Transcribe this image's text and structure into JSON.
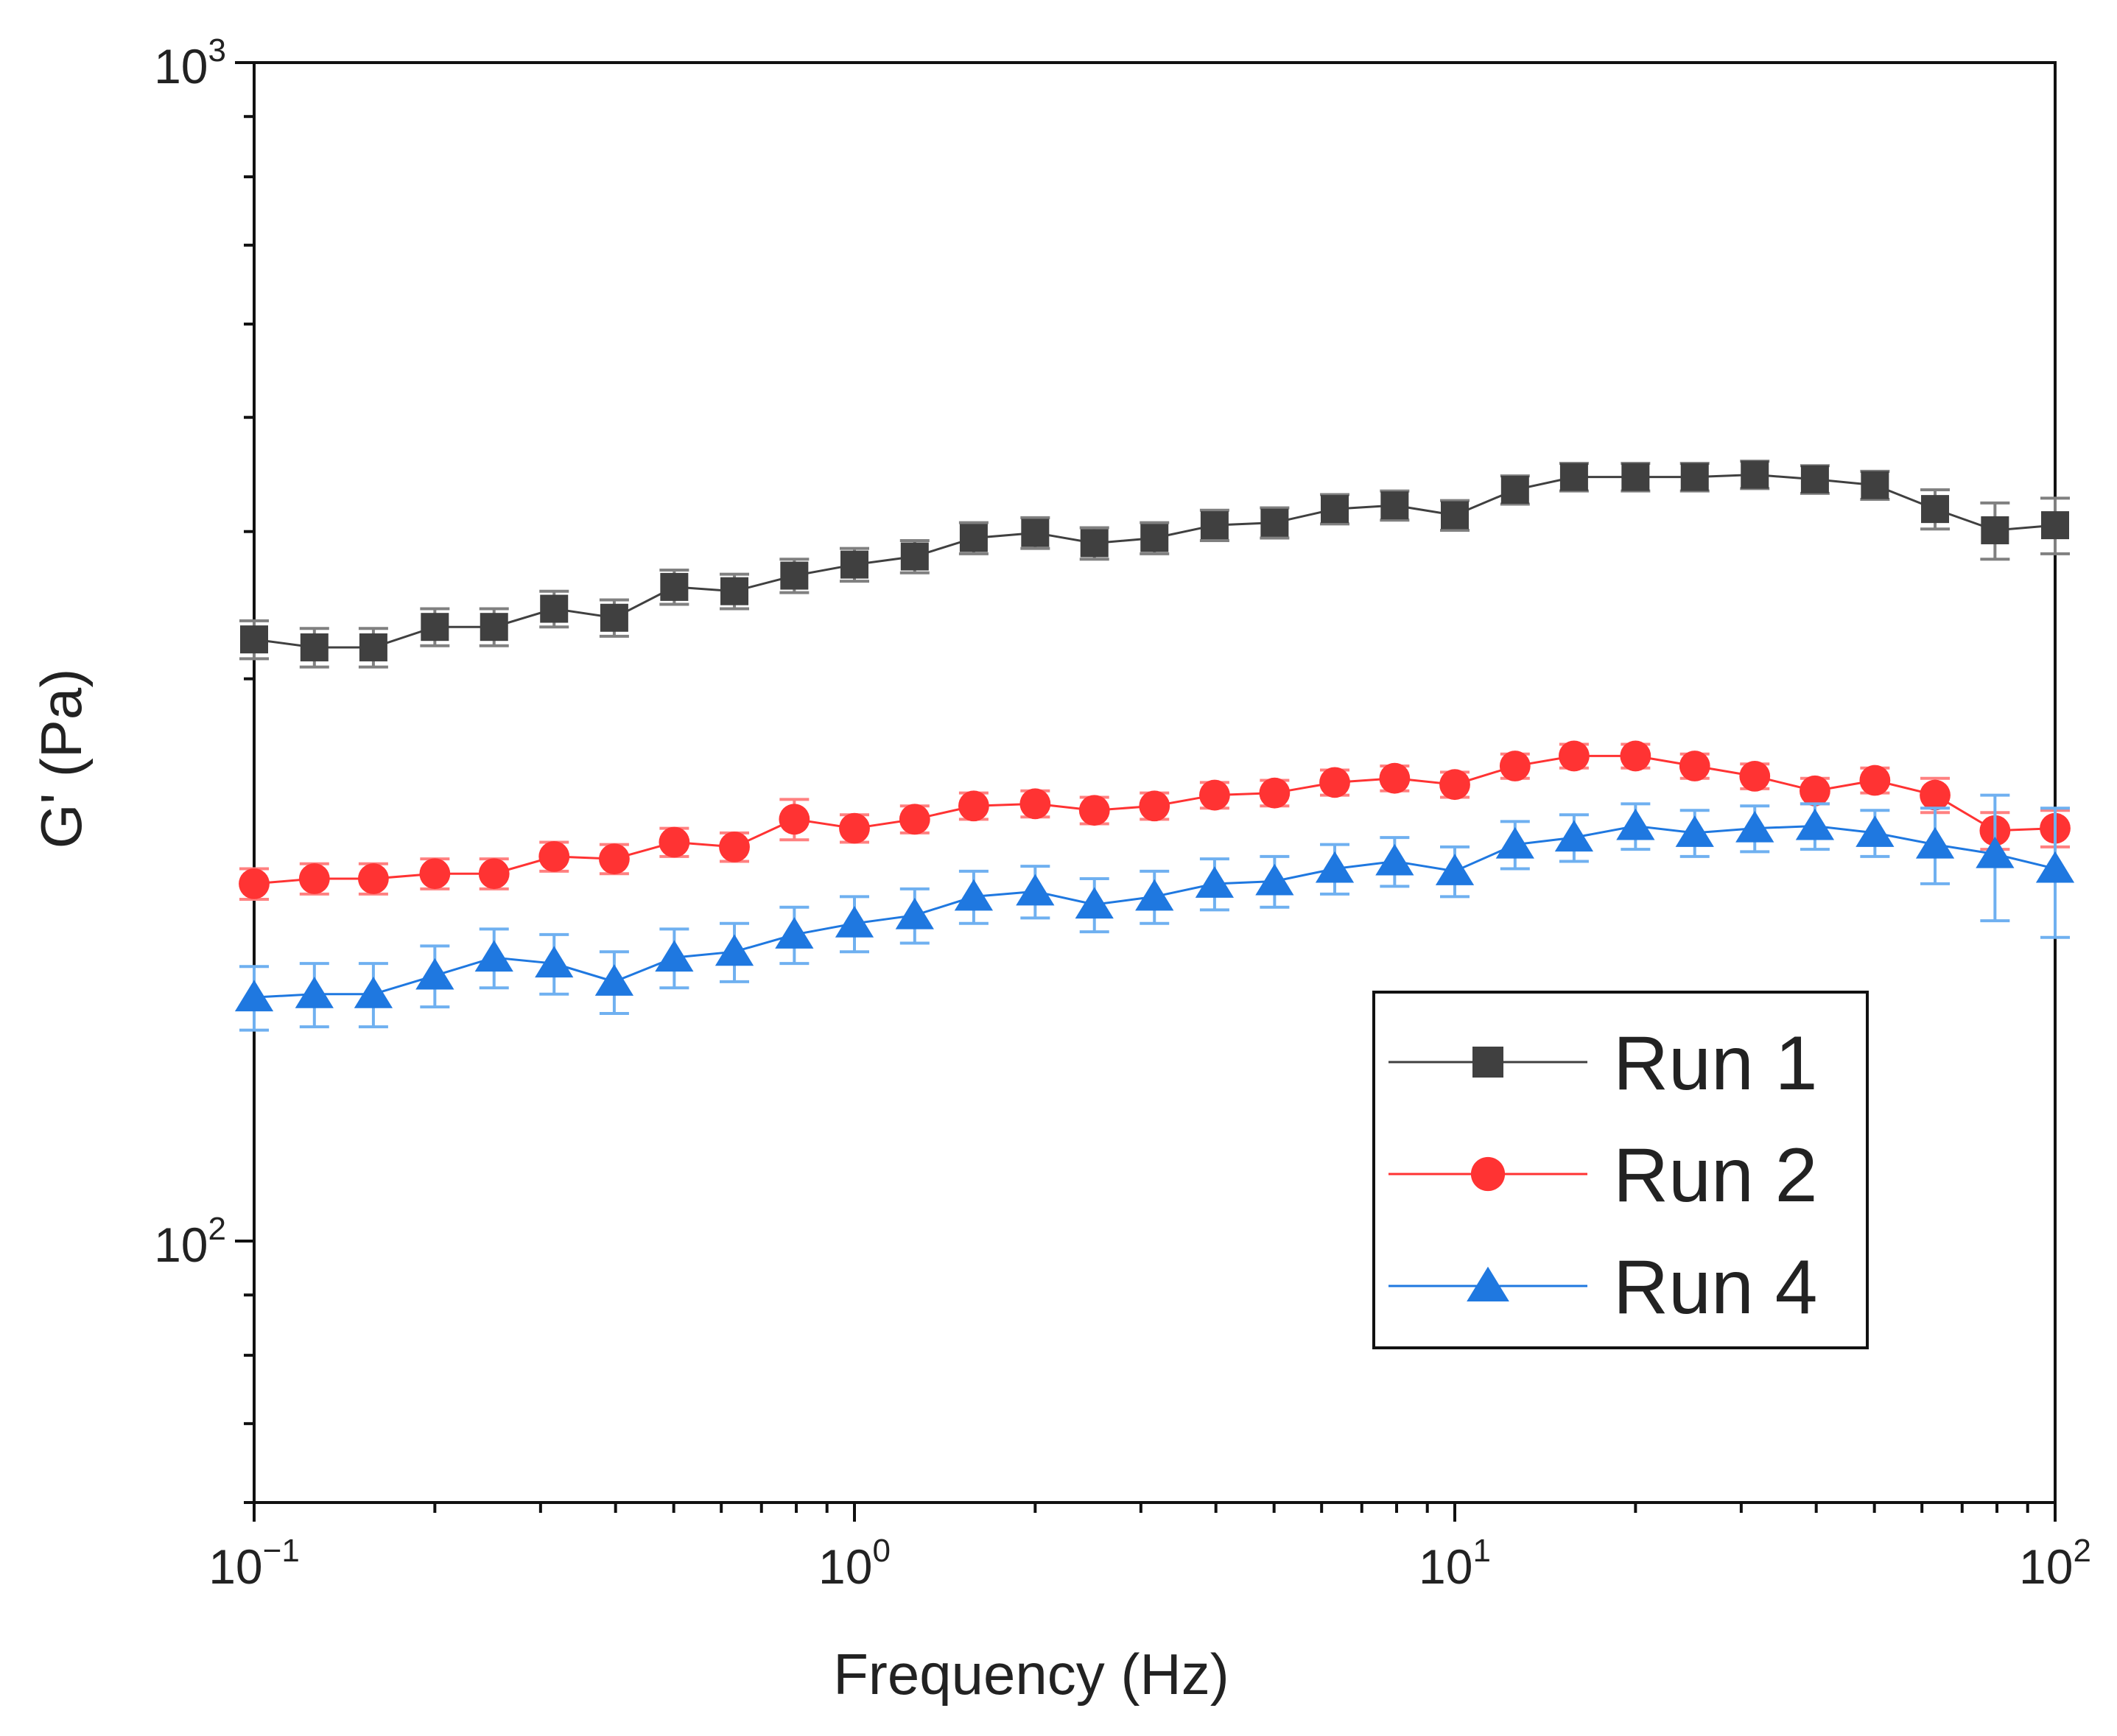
{
  "chart_data": {
    "type": "line",
    "xscale": "log",
    "yscale": "log",
    "xlabel": "Frequency (Hz)",
    "ylabel": "G' (Pa)",
    "xlim": [
      0.1,
      100
    ],
    "ylim": [
      60,
      1000
    ],
    "x_ticks": [
      {
        "base": "10",
        "exp": "−1",
        "value": 0.1
      },
      {
        "base": "10",
        "exp": "0",
        "value": 1
      },
      {
        "base": "10",
        "exp": "1",
        "value": 10
      },
      {
        "base": "10",
        "exp": "2",
        "value": 100
      }
    ],
    "y_ticks": [
      {
        "base": "10",
        "exp": "2",
        "value": 100
      },
      {
        "base": "10",
        "exp": "3",
        "value": 1000
      }
    ],
    "legend_position": "bottom-right",
    "x": [
      0.1,
      0.126,
      0.158,
      0.2,
      0.251,
      0.316,
      0.398,
      0.501,
      0.631,
      0.794,
      1.0,
      1.26,
      1.58,
      2.0,
      2.51,
      3.16,
      3.98,
      5.01,
      6.31,
      7.94,
      10.0,
      12.6,
      15.8,
      20.0,
      25.1,
      31.6,
      39.8,
      50.1,
      63.1,
      79.4,
      100
    ],
    "series": [
      {
        "name": "Run 1",
        "color": "#404040",
        "marker": "square",
        "values": [
          324,
          319,
          319,
          332,
          332,
          344,
          338,
          359,
          356,
          367,
          375,
          381,
          395,
          399,
          391,
          395,
          405,
          407,
          418,
          421,
          413,
          434,
          445,
          445,
          445,
          447,
          443,
          438,
          418,
          401,
          405
        ],
        "errors": [
          12,
          12,
          12,
          12,
          12,
          12,
          12,
          12,
          12,
          12,
          12,
          12,
          12,
          12,
          12,
          12,
          12,
          12,
          12,
          12,
          12,
          12,
          12,
          12,
          12,
          12,
          12,
          12,
          16,
          22,
          22
        ]
      },
      {
        "name": "Run 2",
        "color": "#ff3333",
        "marker": "circle",
        "values": [
          201,
          203,
          203,
          205,
          205,
          212,
          211,
          218,
          216,
          228,
          224,
          228,
          234,
          235,
          232,
          234,
          239,
          240,
          245,
          247,
          244,
          253,
          258,
          258,
          253,
          248,
          241,
          246,
          239,
          223,
          224
        ],
        "errors": [
          6,
          6,
          6,
          6,
          6,
          6,
          6,
          6,
          6,
          9,
          6,
          6,
          6,
          6,
          6,
          6,
          6,
          6,
          6,
          6,
          6,
          6,
          6,
          6,
          6,
          6,
          6,
          6,
          8,
          8,
          8
        ]
      },
      {
        "name": "Run 4",
        "color": "#1f78e0",
        "marker": "triangle",
        "values": [
          161,
          162,
          162,
          168,
          174,
          172,
          166,
          174,
          176,
          182,
          186,
          189,
          196,
          198,
          193,
          196,
          201,
          202,
          207,
          210,
          206,
          217,
          220,
          225,
          222,
          224,
          225,
          222,
          217,
          213,
          207
        ],
        "errors": [
          10,
          10,
          10,
          10,
          10,
          10,
          10,
          10,
          10,
          10,
          10,
          10,
          10,
          10,
          10,
          10,
          10,
          10,
          10,
          10,
          10,
          10,
          10,
          10,
          10,
          10,
          10,
          10,
          16,
          26,
          26
        ]
      }
    ]
  }
}
